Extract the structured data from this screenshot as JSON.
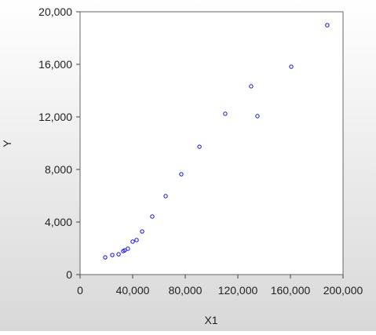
{
  "chart_data": {
    "type": "scatter",
    "x_label": "X1",
    "y_label": "Y",
    "color": "#1010d0",
    "x": [
      19100,
      24500,
      29300,
      32800,
      34000,
      36400,
      40000,
      43000,
      47200,
      54900,
      65100,
      77000,
      90800,
      110400,
      130100,
      134900,
      160600,
      188000
    ],
    "values": [
      1310,
      1490,
      1550,
      1790,
      1850,
      1970,
      2510,
      2630,
      3280,
      4420,
      5970,
      7640,
      9730,
      12240,
      14330,
      12060,
      15820,
      18980
    ],
    "xlim": [
      0,
      200000
    ],
    "xticks": [
      0,
      {
        "value": 40000,
        "label": "40,000"
      },
      {
        "value": 80000,
        "label": "80,000"
      },
      {
        "value": 120000,
        "label": "120,000"
      },
      {
        "value": 160000,
        "label": "160,000"
      },
      {
        "value": 200000,
        "label": "200,000"
      }
    ],
    "ylim": [
      0,
      20000
    ],
    "yticks": [
      0,
      {
        "value": 4000,
        "label": "4,000"
      },
      {
        "value": 8000,
        "label": "8,000"
      },
      {
        "value": 12000,
        "label": "12,000"
      },
      {
        "value": 16000,
        "label": "16,000"
      },
      {
        "value": 20000,
        "label": "20,000"
      }
    ]
  }
}
